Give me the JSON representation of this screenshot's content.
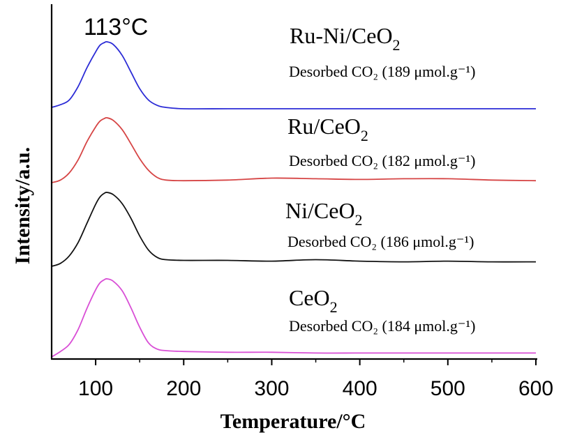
{
  "chart_data": {
    "type": "line",
    "xlabel": "Temperature/°C",
    "ylabel": "Intensity/a.u.",
    "xlim": [
      50,
      600
    ],
    "xticks": [
      100,
      200,
      300,
      400,
      500,
      600
    ],
    "y_ticks_shown": false,
    "grid": false,
    "legend": "none",
    "peak_annotation": "113°C",
    "series": [
      {
        "name": "Ru-Ni/CeO2",
        "name_main": "Ru-Ni/CeO",
        "name_sub": "2",
        "color": "#2b2bd6",
        "desorbed_label": "Desorbed CO₂ (189 μmol.g⁻¹)",
        "desorbed_value": 189,
        "desorbed_unit": "μmol.g⁻¹",
        "x": [
          50,
          60,
          70,
          80,
          90,
          100,
          105,
          110,
          113,
          120,
          130,
          140,
          150,
          160,
          170,
          180,
          200,
          250,
          300,
          350,
          400,
          450,
          500,
          550,
          600
        ],
        "y": [
          0.02,
          0.06,
          0.13,
          0.33,
          0.61,
          0.85,
          0.95,
          0.99,
          1.0,
          0.96,
          0.8,
          0.55,
          0.3,
          0.13,
          0.05,
          0.02,
          0.0,
          0.0,
          0.0,
          0.0,
          0.0,
          0.0,
          0.0,
          0.0,
          0.0
        ]
      },
      {
        "name": "Ru/CeO2",
        "name_main": "Ru/CeO",
        "name_sub": "2",
        "color": "#d64545",
        "desorbed_label": "Desorbed CO₂ (182 μmol.g⁻¹)",
        "desorbed_value": 182,
        "desorbed_unit": "μmol.g⁻¹",
        "x": [
          50,
          60,
          70,
          80,
          90,
          100,
          105,
          110,
          113,
          120,
          130,
          140,
          150,
          160,
          170,
          180,
          200,
          250,
          300,
          350,
          400,
          450,
          500,
          550,
          600
        ],
        "y": [
          0.0,
          0.04,
          0.15,
          0.35,
          0.63,
          0.86,
          0.95,
          0.99,
          1.0,
          0.96,
          0.82,
          0.6,
          0.37,
          0.19,
          0.08,
          0.04,
          0.03,
          0.04,
          0.07,
          0.06,
          0.05,
          0.06,
          0.06,
          0.04,
          0.03
        ]
      },
      {
        "name": "Ni/CeO2",
        "name_main": "Ni/CeO",
        "name_sub": "2",
        "color": "#111111",
        "desorbed_label": "Desorbed CO₂ (186 μmol.g⁻¹)",
        "desorbed_value": 186,
        "desorbed_unit": "μmol.g⁻¹",
        "x": [
          50,
          60,
          70,
          80,
          90,
          100,
          105,
          110,
          113,
          120,
          130,
          140,
          150,
          160,
          170,
          180,
          200,
          250,
          300,
          350,
          400,
          450,
          500,
          550,
          600
        ],
        "y": [
          0.0,
          0.04,
          0.14,
          0.32,
          0.58,
          0.84,
          0.94,
          0.99,
          1.0,
          0.97,
          0.85,
          0.65,
          0.41,
          0.22,
          0.12,
          0.09,
          0.08,
          0.08,
          0.07,
          0.09,
          0.07,
          0.06,
          0.07,
          0.06,
          0.06
        ]
      },
      {
        "name": "CeO2",
        "name_main": "CeO",
        "name_sub": "2",
        "color": "#d94fd6",
        "desorbed_label": "Desorbed CO₂ (184 μmol.g⁻¹)",
        "desorbed_value": 184,
        "desorbed_unit": "μmol.g⁻¹",
        "x": [
          50,
          60,
          70,
          80,
          90,
          100,
          105,
          110,
          113,
          120,
          130,
          140,
          150,
          160,
          170,
          180,
          200,
          250,
          300,
          350,
          400,
          450,
          500,
          550,
          600
        ],
        "y": [
          0.0,
          0.07,
          0.16,
          0.35,
          0.62,
          0.86,
          0.95,
          0.99,
          1.0,
          0.97,
          0.85,
          0.63,
          0.38,
          0.18,
          0.1,
          0.08,
          0.07,
          0.06,
          0.06,
          0.05,
          0.05,
          0.05,
          0.05,
          0.05,
          0.05
        ]
      }
    ]
  }
}
